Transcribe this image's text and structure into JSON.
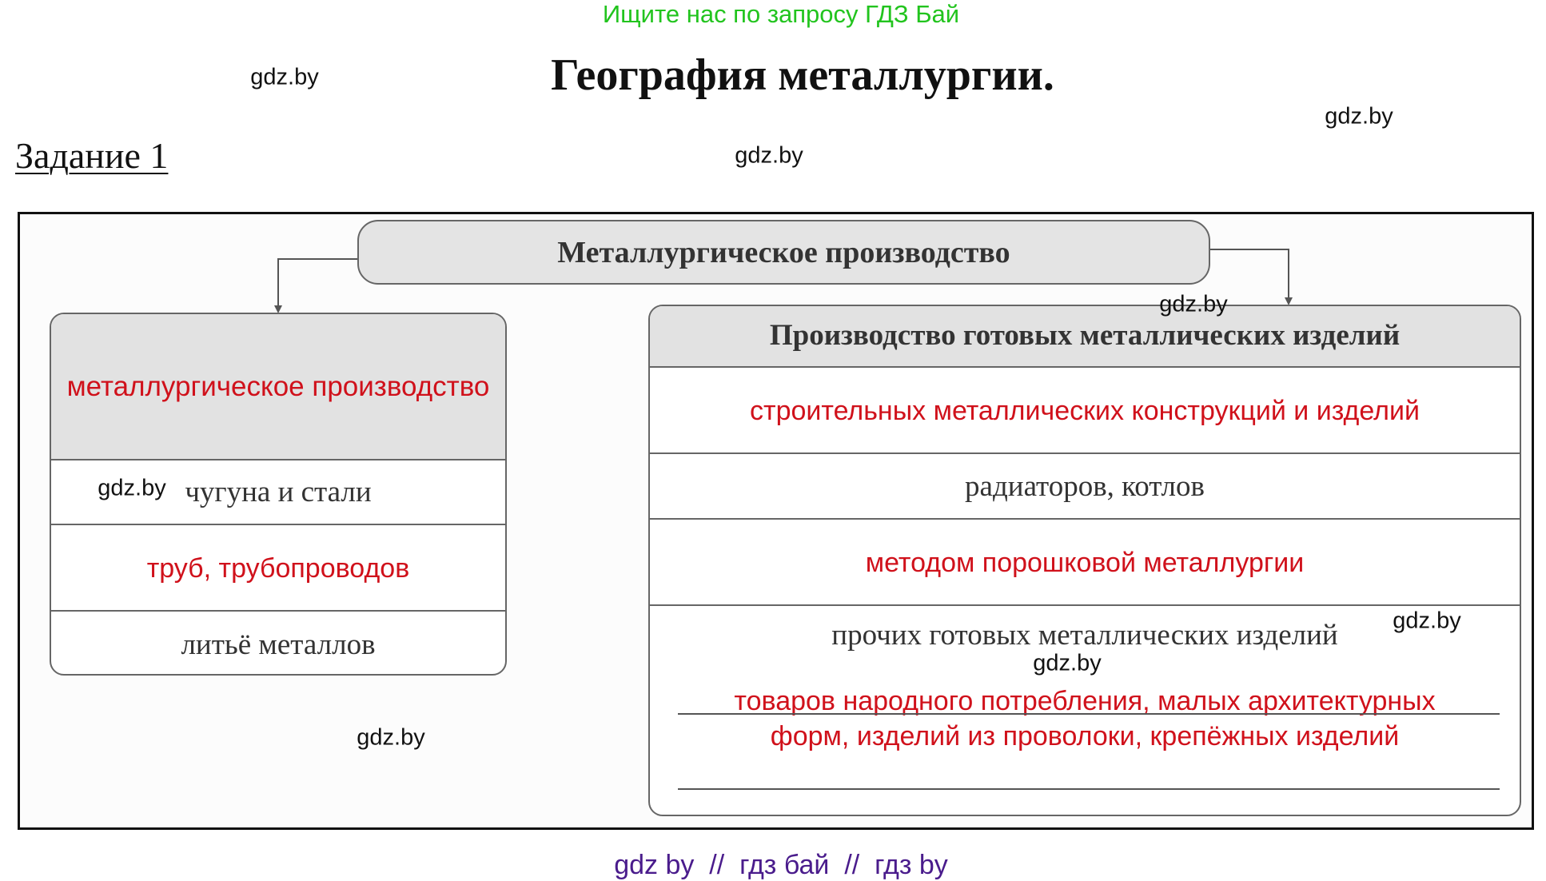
{
  "promo": "Ищите нас по запросу ГДЗ Бай",
  "title": "География металлургии.",
  "task_label": "Задание 1",
  "watermark": "gdz.by",
  "diagram": {
    "root": "Металлургическое производство",
    "left": {
      "header": "металлургическое производство",
      "rows": [
        "чугуна и стали",
        "труб, трубопроводов",
        "литьё металлов"
      ]
    },
    "right": {
      "header": "Производство готовых металлических изделий",
      "rows": [
        "строительных металлических конструкций и изделий",
        "радиаторов, котлов",
        "методом порошковой металлургии",
        "прочих готовых металлических изделий"
      ],
      "answer_line1": "товаров народного потребления, малых архитектурных",
      "answer_line2": "форм, изделий из проволоки, крепёжных изделий"
    }
  },
  "footer": "gdz by  //  гдз бай  //  гдз by",
  "colors": {
    "answer": "#d0111b",
    "promo": "#22c41e",
    "footer": "#4a1c8c"
  }
}
